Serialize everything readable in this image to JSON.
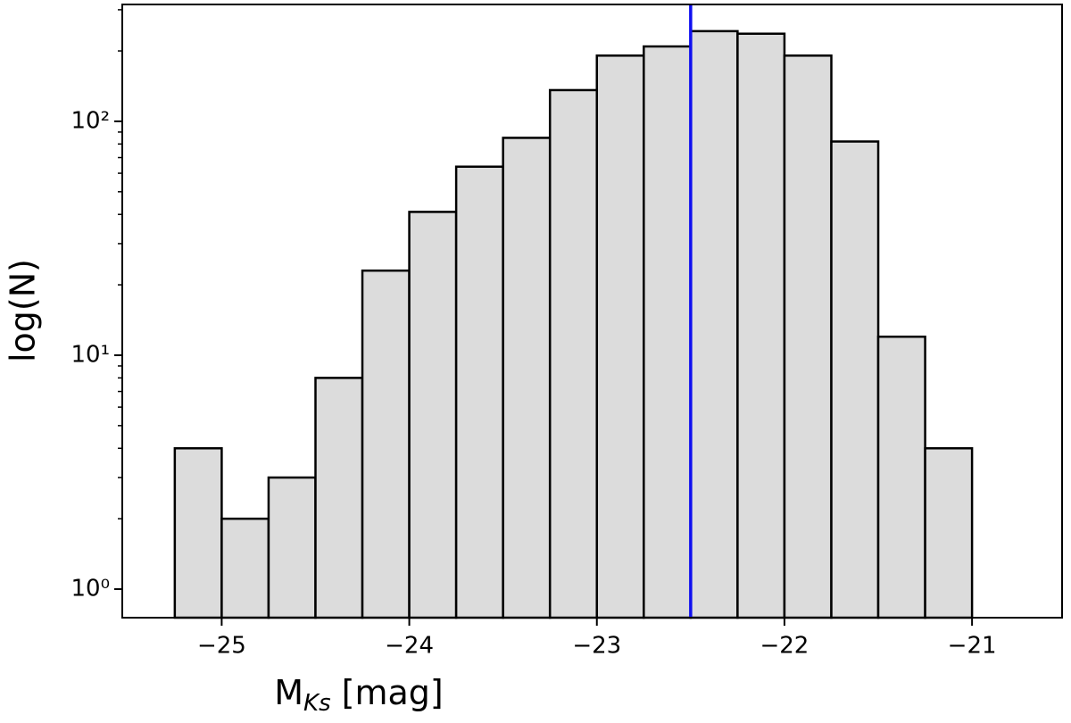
{
  "chart_data": {
    "type": "histogram",
    "xlabel": "M",
    "xlabel_subscript": "Ks",
    "xlabel_suffix": "[mag]",
    "ylabel": "log(N)",
    "bins": [
      -25.25,
      -25,
      -24.75,
      -24.5,
      -24.25,
      -24,
      -23.75,
      -23.5,
      -23.25,
      -23,
      -22.75,
      -22.5,
      -22.25,
      -22,
      -21.75,
      -21.5,
      -21.25,
      -21
    ],
    "values": [
      4,
      2,
      3,
      8,
      23,
      41,
      64,
      85,
      136,
      191,
      209,
      243,
      237,
      191,
      82,
      12,
      4
    ],
    "color": "#dcdcdc",
    "edgecolor": "#000000",
    "vline": {
      "x": -22.5,
      "color": "#1010f0"
    },
    "xlim": [
      -25.53,
      -20.52
    ],
    "xticks": [
      {
        "value": -25,
        "label": "−25"
      },
      {
        "value": -24,
        "label": "−24"
      },
      {
        "value": -23,
        "label": "−23"
      },
      {
        "value": -22,
        "label": "−22"
      },
      {
        "value": -21,
        "label": "−21"
      }
    ],
    "ylim": [
      0.755,
      316
    ],
    "yscale": "log",
    "yticks": [
      {
        "value": 1,
        "label": "10⁰"
      },
      {
        "value": 10,
        "label": "10¹"
      },
      {
        "value": 100,
        "label": "10²"
      }
    ],
    "yminorticks": [
      2,
      3,
      4,
      5,
      6,
      7,
      8,
      9,
      20,
      30,
      40,
      50,
      60,
      70,
      80,
      90,
      200,
      300
    ]
  }
}
